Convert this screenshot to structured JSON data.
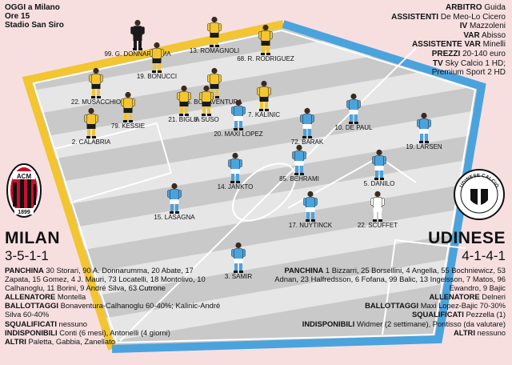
{
  "header_left": {
    "line1": "OGGI a Milano",
    "line2": "Ore 15",
    "line3": "Stadio San Siro"
  },
  "header_right": [
    {
      "label": "ARBITRO",
      "value": "Guida"
    },
    {
      "label": "ASSISTENTI",
      "value": "De Meo-Lo Cicero"
    },
    {
      "label": "IV",
      "value": "Mazzoleni"
    },
    {
      "label": "VAR",
      "value": "Abisso"
    },
    {
      "label": "ASSISTENTE VAR",
      "value": "Minelli"
    },
    {
      "label": "PREZZI",
      "value": "20-140 euro"
    },
    {
      "label": "TV",
      "value": "Sky Calcio 1 HD;"
    },
    {
      "label": "",
      "value": "Premium Sport 2 HD"
    }
  ],
  "milan": {
    "name": "MILAN",
    "formation": "3-5-1-1",
    "logo_text": "ACM",
    "logo_year": "1899",
    "colors": {
      "primary": "#c8102e",
      "secondary": "#111111",
      "kit": "#f2c531"
    },
    "players": [
      {
        "label": "99. G. DONNARUMMA"
      },
      {
        "label": "13. ROMAGNOLI"
      },
      {
        "label": "19. BONUCCI"
      },
      {
        "label": "68. R. RODRIGUEZ"
      },
      {
        "label": "5. BONAVENTURA"
      },
      {
        "label": "22. MUSACCHIO"
      },
      {
        "label": "21. BIGLIA"
      },
      {
        "label": "79. KESSIE"
      },
      {
        "label": "8. SUSO"
      },
      {
        "label": "7. KALINIC"
      },
      {
        "label": "2. CALABRIA"
      }
    ],
    "details": [
      {
        "label": "PANCHINA",
        "value": "30 Storari, 90 A. Donnarumma, 20 Abate, 17 Zapata, 15 Gomez, 4 J. Mauri, 73 Locatelli, 18 Montolivo, 10 Calhanoglu, 11 Borini, 9 André Silva, 63 Cutrone"
      },
      {
        "label": "ALLENATORE",
        "value": "Montella"
      },
      {
        "label": "BALLOTTAGGI",
        "value": "Bonaventura-Calhanoglu 60-40%; Kalinic-André Silva 60-40%"
      },
      {
        "label": "SQUALIFICATI",
        "value": "nessuno"
      },
      {
        "label": "INDISPONIBILI",
        "value": "Conti (6 mesi), Antonelli (4 giorni)"
      },
      {
        "label": "ALTRI",
        "value": "Paletta, Gabbia, Zanellato"
      }
    ]
  },
  "udinese": {
    "name": "UDINESE",
    "formation": "4-1-4-1",
    "logo_text": "UDINESE CALCIO",
    "colors": {
      "kit": "#4aa3dd",
      "primary": "#111111"
    },
    "players": [
      {
        "label": "10. DE PAUL"
      },
      {
        "label": "20. MAXI LOPEZ"
      },
      {
        "label": "72. BARAK"
      },
      {
        "label": "19. LARSEN"
      },
      {
        "label": "14. JANKTO"
      },
      {
        "label": "85. BEHRAMI"
      },
      {
        "label": "5. DANILO"
      },
      {
        "label": "15. LASAGNA"
      },
      {
        "label": "17. NUYTINCK"
      },
      {
        "label": "22. SCUFFET"
      },
      {
        "label": "3. SAMIR"
      }
    ],
    "details": [
      {
        "label": "PANCHINA",
        "value": "1 Bizzarri, 25 Borsellini, 4 Angella, 55 Bochniewicz, 53 Adnan, 23 Halfredsson, 6 Fofana, 99 Balic, 13 Ingelsson, 7 Matos, 96 Ewandro, 9 Bajic"
      },
      {
        "label": "ALLENATORE",
        "value": "Delneri"
      },
      {
        "label": "BALLOTTAGGI",
        "value": "Maxi Lopez-Bajic 70-30%"
      },
      {
        "label": "SQUALIFICATI",
        "value": "Pezzella (1)"
      },
      {
        "label": "INDISPONIBILI",
        "value": "Widmer (2 settimane), Pontisso (da valutare)"
      },
      {
        "label": "ALTRI",
        "value": "nessuno"
      }
    ]
  }
}
